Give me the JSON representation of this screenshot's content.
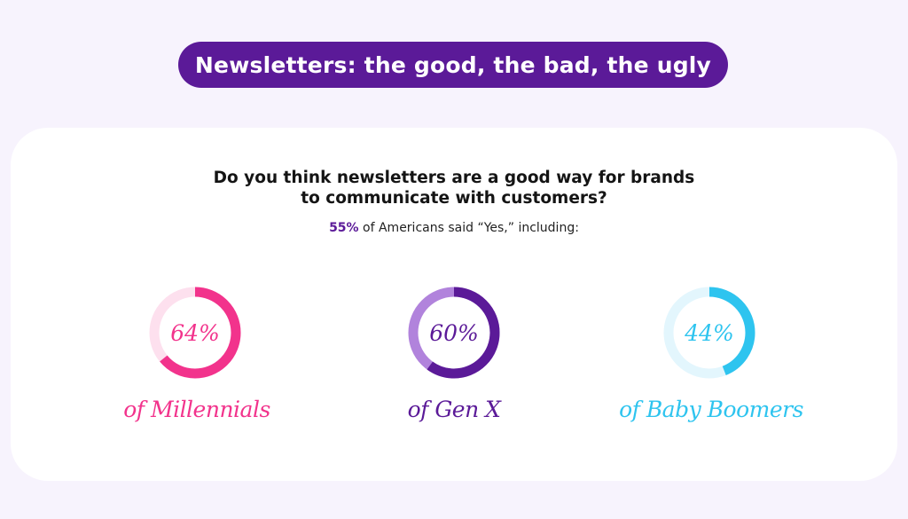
{
  "header": {
    "title": "Newsletters: the good, the bad, the ugly"
  },
  "question": {
    "line1": "Do you think newsletters are a good way for brands",
    "line2": "to communicate with customers?"
  },
  "summary": {
    "percent": "55%",
    "text": " of Americans said “Yes,” including:"
  },
  "colors": {
    "title_bg": "#5b1a98",
    "millennials": "#f2338c",
    "millennials_track": "#fde0ee",
    "genx": "#5b1a98",
    "genx_track": "#b183dc",
    "boomers": "#2ec4ef",
    "boomers_track": "#e3f6fd"
  },
  "chart_data": {
    "type": "donut",
    "title": "Do you think newsletters are a good way for brands to communicate with customers?",
    "overall": {
      "label": "Americans",
      "value": 55
    },
    "items": [
      {
        "label": "64%",
        "value": 64,
        "caption": "of Millennials",
        "color": "#f2338c",
        "track": "#fde0ee"
      },
      {
        "label": "60%",
        "value": 60,
        "caption": "of Gen X",
        "color": "#5b1a98",
        "track": "#b183dc"
      },
      {
        "label": "44%",
        "value": 44,
        "caption": "of Baby Boomers",
        "color": "#2ec4ef",
        "track": "#e3f6fd"
      }
    ]
  }
}
